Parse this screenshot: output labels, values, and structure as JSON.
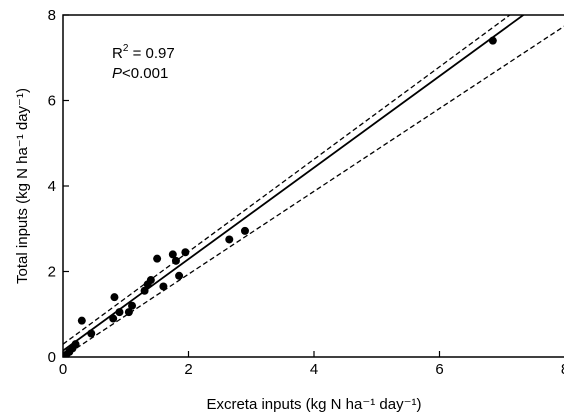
{
  "chart_data": {
    "type": "scatter",
    "xlabel": "Excreta inputs (kg N ha⁻¹ day⁻¹)",
    "ylabel": "Total inputs (kg N ha⁻¹ day⁻¹)",
    "xlim": [
      0,
      8
    ],
    "ylim": [
      0,
      8
    ],
    "xticks": [
      "0",
      "2",
      "4",
      "6",
      "8"
    ],
    "yticks": [
      "0",
      "2",
      "4",
      "6",
      "8"
    ],
    "grid": false,
    "annotations": {
      "r2_label": "R",
      "r2_sup": "2",
      "r2_value": " = 0.97",
      "p_label": "P",
      "p_value": "<0.001"
    },
    "points": [
      [
        0.02,
        0.02
      ],
      [
        0.05,
        0.05
      ],
      [
        0.1,
        0.12
      ],
      [
        0.15,
        0.2
      ],
      [
        0.2,
        0.3
      ],
      [
        0.3,
        0.85
      ],
      [
        0.45,
        0.55
      ],
      [
        0.8,
        0.9
      ],
      [
        0.82,
        1.4
      ],
      [
        0.9,
        1.05
      ],
      [
        1.05,
        1.05
      ],
      [
        1.1,
        1.2
      ],
      [
        1.3,
        1.55
      ],
      [
        1.35,
        1.7
      ],
      [
        1.4,
        1.8
      ],
      [
        1.5,
        2.3
      ],
      [
        1.6,
        1.65
      ],
      [
        1.75,
        2.4
      ],
      [
        1.8,
        2.25
      ],
      [
        1.85,
        1.9
      ],
      [
        1.95,
        2.45
      ],
      [
        2.65,
        2.75
      ],
      [
        2.9,
        2.95
      ],
      [
        6.85,
        7.4
      ]
    ],
    "fit_line": {
      "intercept": 0.15,
      "slope": 1.07
    },
    "confidence_band": [
      {
        "name": "upper",
        "x": [
          0,
          8
        ],
        "y": [
          0.3,
          8.95
        ]
      },
      {
        "name": "lower",
        "x": [
          0,
          8
        ],
        "y": [
          0.0,
          7.75
        ]
      }
    ]
  }
}
